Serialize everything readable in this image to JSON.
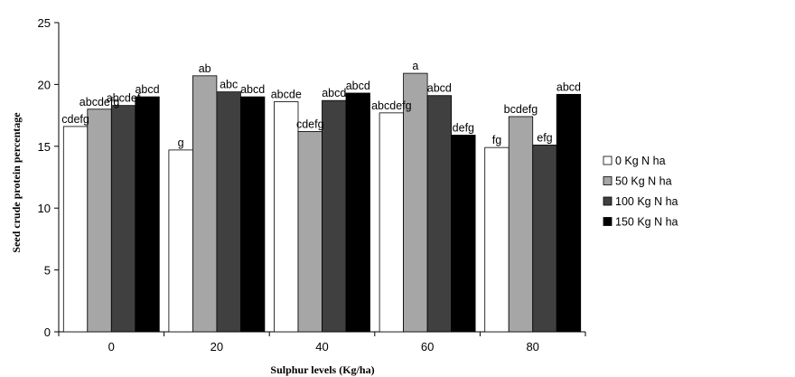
{
  "chart_data": {
    "type": "bar",
    "title": "",
    "xlabel": "Sulphur levels (Kg/ha)",
    "ylabel": "Seed crude protein percentage",
    "categories": [
      "0",
      "20",
      "40",
      "60",
      "80"
    ],
    "ylim": [
      0,
      25
    ],
    "yticks": [
      0,
      5,
      10,
      15,
      20,
      25
    ],
    "grid": false,
    "legend_position": "right",
    "series": [
      {
        "name": "0 Kg N ha",
        "color": "#ffffff",
        "values": [
          16.6,
          14.7,
          18.6,
          17.7,
          14.9
        ],
        "labels": [
          "cdefg",
          "g",
          "abcde",
          "abcdefg",
          "fg"
        ]
      },
      {
        "name": "50 Kg N ha",
        "color": "#a6a6a6",
        "values": [
          18.0,
          20.7,
          16.2,
          20.9,
          17.4
        ],
        "labels": [
          "abcdefg",
          "ab",
          "cdefg",
          "a",
          "bcdefg"
        ]
      },
      {
        "name": "100 Kg N ha",
        "color": "#404040",
        "values": [
          18.3,
          19.4,
          18.7,
          19.1,
          15.1
        ],
        "labels": [
          "abcdef",
          "abc",
          "abcd",
          "abcd",
          "efg"
        ]
      },
      {
        "name": "150 Kg N ha",
        "color": "#000000",
        "values": [
          19.0,
          19.0,
          19.3,
          15.9,
          19.2
        ],
        "labels": [
          "abcd",
          "abcd",
          "abcd",
          "defg",
          "abcd"
        ]
      }
    ]
  }
}
